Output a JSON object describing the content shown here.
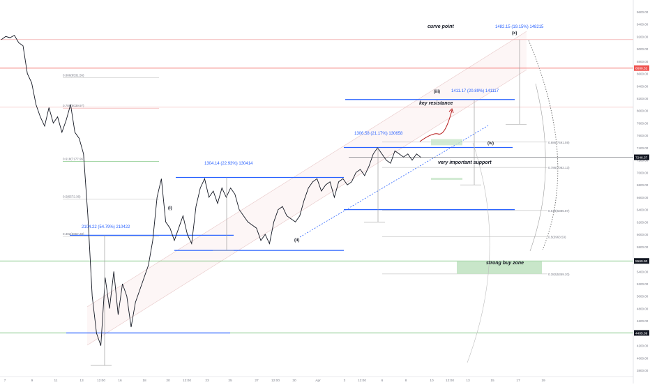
{
  "chart_data": {
    "type": "line",
    "instrument_note": "",
    "xlabel": "",
    "ylabel": "",
    "y_axis_ticks": [
      3800,
      4000,
      4200,
      4400,
      4600,
      4800,
      5000,
      5200,
      5400,
      5600,
      5800,
      6000,
      6200,
      6400,
      6600,
      6800,
      7000,
      7200,
      7400,
      7600,
      7800,
      8000,
      8200,
      8400,
      8600,
      8800,
      9000,
      9200,
      9400,
      9600
    ],
    "y_axis_tick_labels": [
      "3800.00",
      "4000.00",
      "4200.00",
      "4400.00",
      "4600.00",
      "4800.00",
      "5000.00",
      "5200.00",
      "5400.00",
      "5600.00",
      "5800.00",
      "6000.00",
      "6200.00",
      "6400.00",
      "6600.00",
      "6800.00",
      "7000.00",
      "7200.00",
      "7400.00",
      "7600.00",
      "7800.00",
      "8000.00",
      "8200.00",
      "8400.00",
      "8600.00",
      "8800.00",
      "9000.00",
      "9200.00",
      "9400.00",
      "9600.00"
    ],
    "ylim": [
      3700,
      9700
    ],
    "x_axis_tick_labels": [
      "7",
      "9",
      "11",
      "13",
      "12:00",
      "16",
      "18",
      "20",
      "12:00",
      "23",
      "25",
      "27",
      "12:00",
      "30",
      "Apr",
      "3",
      "12:00",
      "6",
      "8",
      "10",
      "12:00",
      "13",
      "15",
      "17",
      "19"
    ],
    "price_labels": {
      "last_price": "7246.37",
      "level_1": "8688.52",
      "level_2": "5569.90",
      "level_3": "4405.89"
    },
    "series": [
      {
        "x": [
          0,
          1,
          2,
          3,
          4,
          5,
          6,
          7,
          8,
          9,
          10,
          11,
          12,
          13,
          14,
          15,
          16,
          17,
          18,
          19,
          20,
          21,
          22,
          23,
          24,
          25,
          26,
          27,
          28,
          29,
          30,
          31,
          32,
          33,
          34,
          35,
          36,
          37,
          38,
          39,
          40,
          41,
          42,
          43,
          44,
          45,
          46,
          47,
          48,
          49,
          50,
          51,
          52,
          53,
          54,
          55,
          56,
          57,
          58,
          59,
          60,
          61,
          62,
          63,
          64,
          65,
          66,
          67,
          68,
          69,
          70,
          71,
          72,
          73,
          74,
          75,
          76,
          77,
          78,
          79,
          80,
          81,
          82,
          83,
          84,
          85,
          86,
          87,
          88,
          89,
          90,
          91,
          92,
          93,
          94,
          95,
          96,
          97,
          98,
          99,
          100,
          101,
          102,
          103,
          104,
          105,
          106,
          107,
          108,
          109,
          110,
          111,
          112,
          113,
          114,
          115,
          116,
          117,
          118,
          119,
          120
        ],
        "y": [
          9150,
          9200,
          9180,
          9220,
          9100,
          9050,
          8600,
          8450,
          8100,
          7900,
          7750,
          8050,
          7800,
          7900,
          7650,
          7850,
          8100,
          7650,
          7550,
          7300,
          6300,
          5000,
          4400,
          4200,
          5300,
          4800,
          5400,
          4700,
          5200,
          5000,
          4500,
          4900,
          5100,
          5300,
          5500,
          5900,
          6600,
          6900,
          6200,
          6100,
          5900,
          6100,
          6300,
          6000,
          5850,
          6450,
          6750,
          6900,
          6600,
          6700,
          6500,
          6750,
          6600,
          6750,
          6650,
          6400,
          6300,
          6200,
          6150,
          6100,
          5900,
          6000,
          5850,
          6200,
          6400,
          6450,
          6300,
          6250,
          6200,
          6300,
          6550,
          6750,
          6850,
          6900,
          6700,
          6800,
          6850,
          6600,
          6850,
          6900,
          6800,
          6850,
          7000,
          7050,
          6950,
          7100,
          7300,
          7400,
          7300,
          7200,
          7150,
          7350,
          7300,
          7250,
          7300,
          7200,
          7300,
          7246,
          null,
          null,
          null,
          null,
          null,
          null,
          null,
          null,
          null,
          null,
          null,
          null,
          null,
          null,
          null,
          null,
          null,
          null,
          null,
          null,
          null,
          null,
          null
        ]
      }
    ],
    "annotations": {
      "curve_point": "curve point",
      "key_resistance": "key resistance",
      "very_important_support": "very important support",
      "strong_buy_zone": "strong buy zone",
      "wave_i": "(i)",
      "wave_ii": "(ii)",
      "wave_iii": "(iii)",
      "wave_iv": "(iv)",
      "wave_x": "(x)",
      "measure_1": "1482.15 (19.15%) 148215",
      "measure_2": "1411.17 (20.89%) 141117",
      "measure_3": "1306.58 (21.17%) 130658",
      "measure_4": "1304.14 (22.93%) 130414",
      "measure_5": "2104.22 (54.79%) 210422"
    },
    "fib_labels": {
      "left_0886": "0.886(8531.56)",
      "left_0786": "0.786(8039.97)",
      "left_0618": "0.618(7177.96)",
      "left_05": "0.5(6572.36)",
      "left_0382": "0.382(5967.38)",
      "right_0886": "0.886(7491.59)",
      "right_0786": "0.786(7082.13)",
      "right_0618": "0.618(6385.87)",
      "right_05": "0.5(5963.53)",
      "right_0382": "0.382(5359.20)"
    },
    "colors": {
      "price": "#131722",
      "blue_level": "#2962ff",
      "green_level": "#4caf50",
      "red_level": "#ef5350",
      "arrow_red": "#b71c1c",
      "buy_zone": "#c8e6c9",
      "channel": "#f3e5e5"
    },
    "grid": false
  }
}
